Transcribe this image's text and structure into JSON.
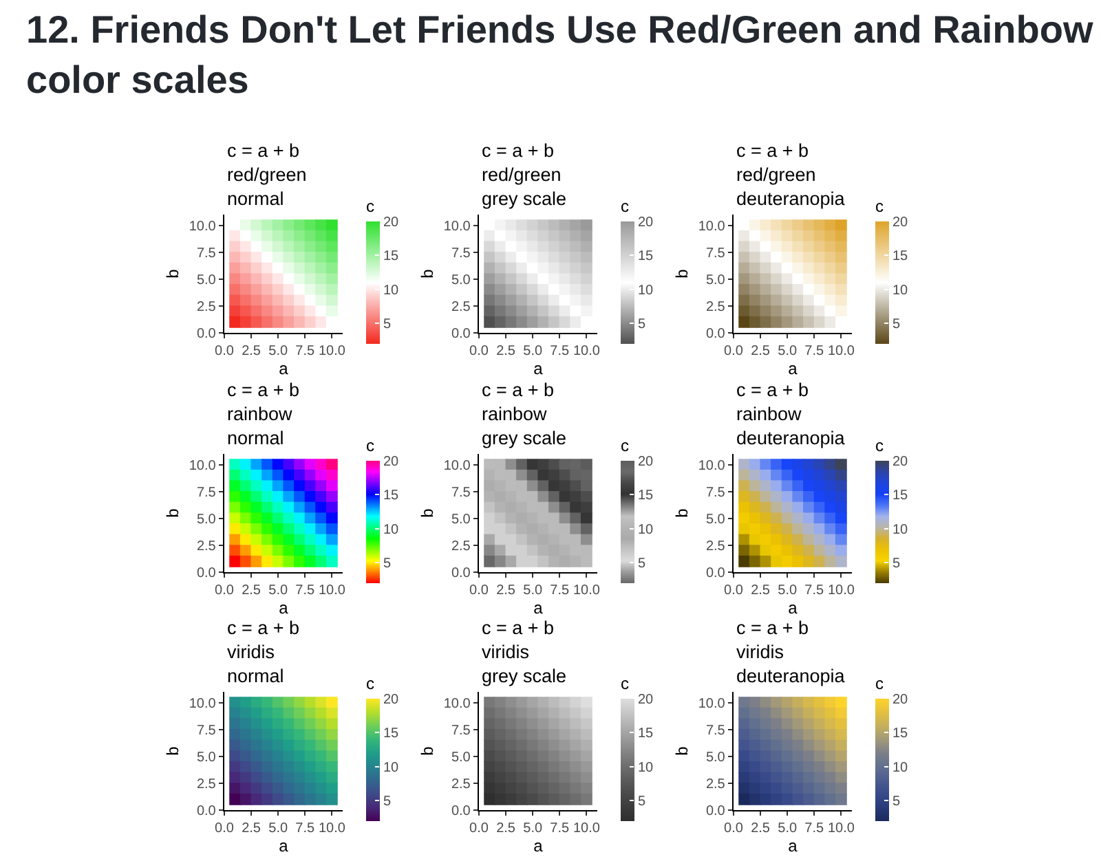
{
  "chart_data": [
    {
      "type": "heatmap",
      "title": "c = a + b\nred/green\nnormal",
      "xlabel": "a",
      "ylabel": "b",
      "clabel": "c",
      "x": [
        1,
        2,
        3,
        4,
        5,
        6,
        7,
        8,
        9,
        10
      ],
      "y": [
        10,
        9,
        8,
        7,
        6,
        5,
        4,
        3,
        2,
        1
      ],
      "cells": [
        [
          11,
          12,
          13,
          14,
          15,
          16,
          17,
          18,
          19,
          20
        ],
        [
          10,
          11,
          12,
          13,
          14,
          15,
          16,
          17,
          18,
          19
        ],
        [
          9,
          10,
          11,
          12,
          13,
          14,
          15,
          16,
          17,
          18
        ],
        [
          8,
          9,
          10,
          11,
          12,
          13,
          14,
          15,
          16,
          17
        ],
        [
          7,
          8,
          9,
          10,
          11,
          12,
          13,
          14,
          15,
          16
        ],
        [
          6,
          7,
          8,
          9,
          10,
          11,
          12,
          13,
          14,
          15
        ],
        [
          5,
          6,
          7,
          8,
          9,
          10,
          11,
          12,
          13,
          14
        ],
        [
          4,
          5,
          6,
          7,
          8,
          9,
          10,
          11,
          12,
          13
        ],
        [
          3,
          4,
          5,
          6,
          7,
          8,
          9,
          10,
          11,
          12
        ],
        [
          2,
          3,
          4,
          5,
          6,
          7,
          8,
          9,
          10,
          11
        ]
      ],
      "colors": [
        "#f3281e",
        "#ffffff",
        "#2fe02f"
      ],
      "clim": [
        2,
        20
      ],
      "cticks": [
        5,
        10,
        15,
        20
      ],
      "xlim": [
        0,
        11
      ],
      "ylim": [
        0,
        11
      ],
      "xticks": [
        {
          "value": 0,
          "label": "0.0"
        },
        {
          "value": 2.5,
          "label": "2.5"
        },
        {
          "value": 5,
          "label": "5.0"
        },
        {
          "value": 7.5,
          "label": "7.5"
        },
        {
          "value": 10,
          "label": "10.0"
        }
      ],
      "yticks": [
        {
          "value": 0,
          "label": "0.0"
        },
        {
          "value": 2.5,
          "label": "2.5"
        },
        {
          "value": 5,
          "label": "5.0"
        },
        {
          "value": 7.5,
          "label": "7.5"
        },
        {
          "value": 10,
          "label": "10.0"
        }
      ]
    },
    {
      "type": "heatmap",
      "title": "c = a + b\nred/green\ngrey scale",
      "xlabel": "a",
      "ylabel": "b",
      "clabel": "c",
      "x": [
        1,
        2,
        3,
        4,
        5,
        6,
        7,
        8,
        9,
        10
      ],
      "y": [
        10,
        9,
        8,
        7,
        6,
        5,
        4,
        3,
        2,
        1
      ],
      "cells": [
        [
          11,
          12,
          13,
          14,
          15,
          16,
          17,
          18,
          19,
          20
        ],
        [
          10,
          11,
          12,
          13,
          14,
          15,
          16,
          17,
          18,
          19
        ],
        [
          9,
          10,
          11,
          12,
          13,
          14,
          15,
          16,
          17,
          18
        ],
        [
          8,
          9,
          10,
          11,
          12,
          13,
          14,
          15,
          16,
          17
        ],
        [
          7,
          8,
          9,
          10,
          11,
          12,
          13,
          14,
          15,
          16
        ],
        [
          6,
          7,
          8,
          9,
          10,
          11,
          12,
          13,
          14,
          15
        ],
        [
          5,
          6,
          7,
          8,
          9,
          10,
          11,
          12,
          13,
          14
        ],
        [
          4,
          5,
          6,
          7,
          8,
          9,
          10,
          11,
          12,
          13
        ],
        [
          3,
          4,
          5,
          6,
          7,
          8,
          9,
          10,
          11,
          12
        ],
        [
          2,
          3,
          4,
          5,
          6,
          7,
          8,
          9,
          10,
          11
        ]
      ],
      "colors": [
        "#505050",
        "#ffffff",
        "#9a9a9a"
      ],
      "clim": [
        2,
        20
      ],
      "cticks": [
        5,
        10,
        15,
        20
      ],
      "xlim": [
        0,
        11
      ],
      "ylim": [
        0,
        11
      ],
      "xticks": [
        {
          "value": 0,
          "label": "0.0"
        },
        {
          "value": 2.5,
          "label": "2.5"
        },
        {
          "value": 5,
          "label": "5.0"
        },
        {
          "value": 7.5,
          "label": "7.5"
        },
        {
          "value": 10,
          "label": "10.0"
        }
      ],
      "yticks": [
        {
          "value": 0,
          "label": "0.0"
        },
        {
          "value": 2.5,
          "label": "2.5"
        },
        {
          "value": 5,
          "label": "5.0"
        },
        {
          "value": 7.5,
          "label": "7.5"
        },
        {
          "value": 10,
          "label": "10.0"
        }
      ]
    },
    {
      "type": "heatmap",
      "title": "c = a + b\nred/green\ndeuteranopia",
      "xlabel": "a",
      "ylabel": "b",
      "clabel": "c",
      "x": [
        1,
        2,
        3,
        4,
        5,
        6,
        7,
        8,
        9,
        10
      ],
      "y": [
        10,
        9,
        8,
        7,
        6,
        5,
        4,
        3,
        2,
        1
      ],
      "cells": [
        [
          11,
          12,
          13,
          14,
          15,
          16,
          17,
          18,
          19,
          20
        ],
        [
          10,
          11,
          12,
          13,
          14,
          15,
          16,
          17,
          18,
          19
        ],
        [
          9,
          10,
          11,
          12,
          13,
          14,
          15,
          16,
          17,
          18
        ],
        [
          8,
          9,
          10,
          11,
          12,
          13,
          14,
          15,
          16,
          17
        ],
        [
          7,
          8,
          9,
          10,
          11,
          12,
          13,
          14,
          15,
          16
        ],
        [
          6,
          7,
          8,
          9,
          10,
          11,
          12,
          13,
          14,
          15
        ],
        [
          5,
          6,
          7,
          8,
          9,
          10,
          11,
          12,
          13,
          14
        ],
        [
          4,
          5,
          6,
          7,
          8,
          9,
          10,
          11,
          12,
          13
        ],
        [
          3,
          4,
          5,
          6,
          7,
          8,
          9,
          10,
          11,
          12
        ],
        [
          2,
          3,
          4,
          5,
          6,
          7,
          8,
          9,
          10,
          11
        ]
      ],
      "colors": [
        "#5a4516",
        "#ffffff",
        "#dea42a"
      ],
      "clim": [
        2,
        20
      ],
      "cticks": [
        5,
        10,
        15,
        20
      ],
      "xlim": [
        0,
        11
      ],
      "ylim": [
        0,
        11
      ],
      "xticks": [
        {
          "value": 0,
          "label": "0.0"
        },
        {
          "value": 2.5,
          "label": "2.5"
        },
        {
          "value": 5,
          "label": "5.0"
        },
        {
          "value": 7.5,
          "label": "7.5"
        },
        {
          "value": 10,
          "label": "10.0"
        }
      ],
      "yticks": [
        {
          "value": 0,
          "label": "0.0"
        },
        {
          "value": 2.5,
          "label": "2.5"
        },
        {
          "value": 5,
          "label": "5.0"
        },
        {
          "value": 7.5,
          "label": "7.5"
        },
        {
          "value": 10,
          "label": "10.0"
        }
      ]
    },
    {
      "type": "heatmap",
      "title": "c = a + b\nrainbow\nnormal",
      "xlabel": "a",
      "ylabel": "b",
      "clabel": "c",
      "x": [
        1,
        2,
        3,
        4,
        5,
        6,
        7,
        8,
        9,
        10
      ],
      "y": [
        10,
        9,
        8,
        7,
        6,
        5,
        4,
        3,
        2,
        1
      ],
      "cells": [
        [
          11,
          12,
          13,
          14,
          15,
          16,
          17,
          18,
          19,
          20
        ],
        [
          10,
          11,
          12,
          13,
          14,
          15,
          16,
          17,
          18,
          19
        ],
        [
          9,
          10,
          11,
          12,
          13,
          14,
          15,
          16,
          17,
          18
        ],
        [
          8,
          9,
          10,
          11,
          12,
          13,
          14,
          15,
          16,
          17
        ],
        [
          7,
          8,
          9,
          10,
          11,
          12,
          13,
          14,
          15,
          16
        ],
        [
          6,
          7,
          8,
          9,
          10,
          11,
          12,
          13,
          14,
          15
        ],
        [
          5,
          6,
          7,
          8,
          9,
          10,
          11,
          12,
          13,
          14
        ],
        [
          4,
          5,
          6,
          7,
          8,
          9,
          10,
          11,
          12,
          13
        ],
        [
          3,
          4,
          5,
          6,
          7,
          8,
          9,
          10,
          11,
          12
        ],
        [
          2,
          3,
          4,
          5,
          6,
          7,
          8,
          9,
          10,
          11
        ]
      ],
      "colors": [
        "#ff0000",
        "#ff8000",
        "#ffff00",
        "#80ff00",
        "#00ff00",
        "#00ff80",
        "#00ffff",
        "#0080ff",
        "#0000ff",
        "#8000ff",
        "#ff00ff",
        "#ff0080"
      ],
      "clim": [
        2,
        20
      ],
      "cticks": [
        5,
        10,
        15,
        20
      ],
      "xlim": [
        0,
        11
      ],
      "ylim": [
        0,
        11
      ],
      "xticks": [
        {
          "value": 0,
          "label": "0.0"
        },
        {
          "value": 2.5,
          "label": "2.5"
        },
        {
          "value": 5,
          "label": "5.0"
        },
        {
          "value": 7.5,
          "label": "7.5"
        },
        {
          "value": 10,
          "label": "10.0"
        }
      ],
      "yticks": [
        {
          "value": 0,
          "label": "0.0"
        },
        {
          "value": 2.5,
          "label": "2.5"
        },
        {
          "value": 5,
          "label": "5.0"
        },
        {
          "value": 7.5,
          "label": "7.5"
        },
        {
          "value": 10,
          "label": "10.0"
        }
      ]
    },
    {
      "type": "heatmap",
      "title": "c = a + b\nrainbow\ngrey scale",
      "xlabel": "a",
      "ylabel": "b",
      "clabel": "c",
      "x": [
        1,
        2,
        3,
        4,
        5,
        6,
        7,
        8,
        9,
        10
      ],
      "y": [
        10,
        9,
        8,
        7,
        6,
        5,
        4,
        3,
        2,
        1
      ],
      "cells": [
        [
          11,
          12,
          13,
          14,
          15,
          16,
          17,
          18,
          19,
          20
        ],
        [
          10,
          11,
          12,
          13,
          14,
          15,
          16,
          17,
          18,
          19
        ],
        [
          9,
          10,
          11,
          12,
          13,
          14,
          15,
          16,
          17,
          18
        ],
        [
          8,
          9,
          10,
          11,
          12,
          13,
          14,
          15,
          16,
          17
        ],
        [
          7,
          8,
          9,
          10,
          11,
          12,
          13,
          14,
          15,
          16
        ],
        [
          6,
          7,
          8,
          9,
          10,
          11,
          12,
          13,
          14,
          15
        ],
        [
          5,
          6,
          7,
          8,
          9,
          10,
          11,
          12,
          13,
          14
        ],
        [
          4,
          5,
          6,
          7,
          8,
          9,
          10,
          11,
          12,
          13
        ],
        [
          3,
          4,
          5,
          6,
          7,
          8,
          9,
          10,
          11,
          12
        ],
        [
          2,
          3,
          4,
          5,
          6,
          7,
          8,
          9,
          10,
          11
        ]
      ],
      "colors": [
        "#686868",
        "#9b9b9b",
        "#dcdcdc",
        "#c4c4c4",
        "#aaaaaa",
        "#b4b4b4",
        "#c2c2c2",
        "#7a7a7a",
        "#323232",
        "#474747",
        "#6a6a6a",
        "#5c5c5c"
      ],
      "clim": [
        2,
        20
      ],
      "cticks": [
        5,
        10,
        15,
        20
      ],
      "xlim": [
        0,
        11
      ],
      "ylim": [
        0,
        11
      ],
      "xticks": [
        {
          "value": 0,
          "label": "0.0"
        },
        {
          "value": 2.5,
          "label": "2.5"
        },
        {
          "value": 5,
          "label": "5.0"
        },
        {
          "value": 7.5,
          "label": "7.5"
        },
        {
          "value": 10,
          "label": "10.0"
        }
      ],
      "yticks": [
        {
          "value": 0,
          "label": "0.0"
        },
        {
          "value": 2.5,
          "label": "2.5"
        },
        {
          "value": 5,
          "label": "5.0"
        },
        {
          "value": 7.5,
          "label": "7.5"
        },
        {
          "value": 10,
          "label": "10.0"
        }
      ]
    },
    {
      "type": "heatmap",
      "title": "c = a + b\nrainbow\ndeuteranopia",
      "xlabel": "a",
      "ylabel": "b",
      "clabel": "c",
      "x": [
        1,
        2,
        3,
        4,
        5,
        6,
        7,
        8,
        9,
        10
      ],
      "y": [
        10,
        9,
        8,
        7,
        6,
        5,
        4,
        3,
        2,
        1
      ],
      "cells": [
        [
          11,
          12,
          13,
          14,
          15,
          16,
          17,
          18,
          19,
          20
        ],
        [
          10,
          11,
          12,
          13,
          14,
          15,
          16,
          17,
          18,
          19
        ],
        [
          9,
          10,
          11,
          12,
          13,
          14,
          15,
          16,
          17,
          18
        ],
        [
          8,
          9,
          10,
          11,
          12,
          13,
          14,
          15,
          16,
          17
        ],
        [
          7,
          8,
          9,
          10,
          11,
          12,
          13,
          14,
          15,
          16
        ],
        [
          6,
          7,
          8,
          9,
          10,
          11,
          12,
          13,
          14,
          15
        ],
        [
          5,
          6,
          7,
          8,
          9,
          10,
          11,
          12,
          13,
          14
        ],
        [
          4,
          5,
          6,
          7,
          8,
          9,
          10,
          11,
          12,
          13
        ],
        [
          3,
          4,
          5,
          6,
          7,
          8,
          9,
          10,
          11,
          12
        ],
        [
          2,
          3,
          4,
          5,
          6,
          7,
          8,
          9,
          10,
          11
        ]
      ],
      "colors": [
        "#4a3b00",
        "#9a7f00",
        "#f8d400",
        "#ecc200",
        "#d6b12e",
        "#b9b6a8",
        "#a3b3ec",
        "#4a74f6",
        "#1442f7",
        "#1f44dc",
        "#2c44a8",
        "#3d4458"
      ],
      "clim": [
        2,
        20
      ],
      "cticks": [
        5,
        10,
        15,
        20
      ],
      "xlim": [
        0,
        11
      ],
      "ylim": [
        0,
        11
      ],
      "xticks": [
        {
          "value": 0,
          "label": "0.0"
        },
        {
          "value": 2.5,
          "label": "2.5"
        },
        {
          "value": 5,
          "label": "5.0"
        },
        {
          "value": 7.5,
          "label": "7.5"
        },
        {
          "value": 10,
          "label": "10.0"
        }
      ],
      "yticks": [
        {
          "value": 0,
          "label": "0.0"
        },
        {
          "value": 2.5,
          "label": "2.5"
        },
        {
          "value": 5,
          "label": "5.0"
        },
        {
          "value": 7.5,
          "label": "7.5"
        },
        {
          "value": 10,
          "label": "10.0"
        }
      ]
    },
    {
      "type": "heatmap",
      "title": "c = a + b\nviridis\nnormal",
      "xlabel": "a",
      "ylabel": "b",
      "clabel": "c",
      "x": [
        1,
        2,
        3,
        4,
        5,
        6,
        7,
        8,
        9,
        10
      ],
      "y": [
        10,
        9,
        8,
        7,
        6,
        5,
        4,
        3,
        2,
        1
      ],
      "cells": [
        [
          11,
          12,
          13,
          14,
          15,
          16,
          17,
          18,
          19,
          20
        ],
        [
          10,
          11,
          12,
          13,
          14,
          15,
          16,
          17,
          18,
          19
        ],
        [
          9,
          10,
          11,
          12,
          13,
          14,
          15,
          16,
          17,
          18
        ],
        [
          8,
          9,
          10,
          11,
          12,
          13,
          14,
          15,
          16,
          17
        ],
        [
          7,
          8,
          9,
          10,
          11,
          12,
          13,
          14,
          15,
          16
        ],
        [
          6,
          7,
          8,
          9,
          10,
          11,
          12,
          13,
          14,
          15
        ],
        [
          5,
          6,
          7,
          8,
          9,
          10,
          11,
          12,
          13,
          14
        ],
        [
          4,
          5,
          6,
          7,
          8,
          9,
          10,
          11,
          12,
          13
        ],
        [
          3,
          4,
          5,
          6,
          7,
          8,
          9,
          10,
          11,
          12
        ],
        [
          2,
          3,
          4,
          5,
          6,
          7,
          8,
          9,
          10,
          11
        ]
      ],
      "colors": [
        "#440154",
        "#482878",
        "#3e4a89",
        "#31688e",
        "#26828e",
        "#1f9e89",
        "#35b779",
        "#6ece58",
        "#b5de2b",
        "#fde725"
      ],
      "clim": [
        2,
        20
      ],
      "cticks": [
        5,
        10,
        15,
        20
      ],
      "xlim": [
        0,
        11
      ],
      "ylim": [
        0,
        11
      ],
      "xticks": [
        {
          "value": 0,
          "label": "0.0"
        },
        {
          "value": 2.5,
          "label": "2.5"
        },
        {
          "value": 5,
          "label": "5.0"
        },
        {
          "value": 7.5,
          "label": "7.5"
        },
        {
          "value": 10,
          "label": "10.0"
        }
      ],
      "yticks": [
        {
          "value": 0,
          "label": "0.0"
        },
        {
          "value": 2.5,
          "label": "2.5"
        },
        {
          "value": 5,
          "label": "5.0"
        },
        {
          "value": 7.5,
          "label": "7.5"
        },
        {
          "value": 10,
          "label": "10.0"
        }
      ]
    },
    {
      "type": "heatmap",
      "title": "c = a + b\nviridis\ngrey scale",
      "xlabel": "a",
      "ylabel": "b",
      "clabel": "c",
      "x": [
        1,
        2,
        3,
        4,
        5,
        6,
        7,
        8,
        9,
        10
      ],
      "y": [
        10,
        9,
        8,
        7,
        6,
        5,
        4,
        3,
        2,
        1
      ],
      "cells": [
        [
          11,
          12,
          13,
          14,
          15,
          16,
          17,
          18,
          19,
          20
        ],
        [
          10,
          11,
          12,
          13,
          14,
          15,
          16,
          17,
          18,
          19
        ],
        [
          9,
          10,
          11,
          12,
          13,
          14,
          15,
          16,
          17,
          18
        ],
        [
          8,
          9,
          10,
          11,
          12,
          13,
          14,
          15,
          16,
          17
        ],
        [
          7,
          8,
          9,
          10,
          11,
          12,
          13,
          14,
          15,
          16
        ],
        [
          6,
          7,
          8,
          9,
          10,
          11,
          12,
          13,
          14,
          15
        ],
        [
          5,
          6,
          7,
          8,
          9,
          10,
          11,
          12,
          13,
          14
        ],
        [
          4,
          5,
          6,
          7,
          8,
          9,
          10,
          11,
          12,
          13
        ],
        [
          3,
          4,
          5,
          6,
          7,
          8,
          9,
          10,
          11,
          12
        ],
        [
          2,
          3,
          4,
          5,
          6,
          7,
          8,
          9,
          10,
          11
        ]
      ],
      "colors": [
        "#2e2e2e",
        "#3b3b3b",
        "#4a4a4a",
        "#5b5b5b",
        "#6d6d6d",
        "#828282",
        "#999999",
        "#b0b0b0",
        "#c7c7c7",
        "#dedede"
      ],
      "clim": [
        2,
        20
      ],
      "cticks": [
        5,
        10,
        15,
        20
      ],
      "xlim": [
        0,
        11
      ],
      "ylim": [
        0,
        11
      ],
      "xticks": [
        {
          "value": 0,
          "label": "0.0"
        },
        {
          "value": 2.5,
          "label": "2.5"
        },
        {
          "value": 5,
          "label": "5.0"
        },
        {
          "value": 7.5,
          "label": "7.5"
        },
        {
          "value": 10,
          "label": "10.0"
        }
      ],
      "yticks": [
        {
          "value": 0,
          "label": "0.0"
        },
        {
          "value": 2.5,
          "label": "2.5"
        },
        {
          "value": 5,
          "label": "5.0"
        },
        {
          "value": 7.5,
          "label": "7.5"
        },
        {
          "value": 10,
          "label": "10.0"
        }
      ]
    },
    {
      "type": "heatmap",
      "title": "c = a + b\nviridis\ndeuteranopia",
      "xlabel": "a",
      "ylabel": "b",
      "clabel": "c",
      "x": [
        1,
        2,
        3,
        4,
        5,
        6,
        7,
        8,
        9,
        10
      ],
      "y": [
        10,
        9,
        8,
        7,
        6,
        5,
        4,
        3,
        2,
        1
      ],
      "cells": [
        [
          11,
          12,
          13,
          14,
          15,
          16,
          17,
          18,
          19,
          20
        ],
        [
          10,
          11,
          12,
          13,
          14,
          15,
          16,
          17,
          18,
          19
        ],
        [
          9,
          10,
          11,
          12,
          13,
          14,
          15,
          16,
          17,
          18
        ],
        [
          8,
          9,
          10,
          11,
          12,
          13,
          14,
          15,
          16,
          17
        ],
        [
          7,
          8,
          9,
          10,
          11,
          12,
          13,
          14,
          15,
          16
        ],
        [
          6,
          7,
          8,
          9,
          10,
          11,
          12,
          13,
          14,
          15
        ],
        [
          5,
          6,
          7,
          8,
          9,
          10,
          11,
          12,
          13,
          14
        ],
        [
          4,
          5,
          6,
          7,
          8,
          9,
          10,
          11,
          12,
          13
        ],
        [
          3,
          4,
          5,
          6,
          7,
          8,
          9,
          10,
          11,
          12
        ],
        [
          2,
          3,
          4,
          5,
          6,
          7,
          8,
          9,
          10,
          11
        ]
      ],
      "colors": [
        "#1b2a5c",
        "#293a79",
        "#384a8a",
        "#4c5c8f",
        "#61708f",
        "#7c7f88",
        "#a2987a",
        "#c6af5c",
        "#e4c03f",
        "#fdd42c"
      ],
      "clim": [
        2,
        20
      ],
      "cticks": [
        5,
        10,
        15,
        20
      ],
      "xlim": [
        0,
        11
      ],
      "ylim": [
        0,
        11
      ],
      "xticks": [
        {
          "value": 0,
          "label": "0.0"
        },
        {
          "value": 2.5,
          "label": "2.5"
        },
        {
          "value": 5,
          "label": "5.0"
        },
        {
          "value": 7.5,
          "label": "7.5"
        },
        {
          "value": 10,
          "label": "10.0"
        }
      ],
      "yticks": [
        {
          "value": 0,
          "label": "0.0"
        },
        {
          "value": 2.5,
          "label": "2.5"
        },
        {
          "value": 5,
          "label": "5.0"
        },
        {
          "value": 7.5,
          "label": "7.5"
        },
        {
          "value": 10,
          "label": "10.0"
        }
      ]
    },
    {
      "type": "other",
      "title": "12. Friends Don't Let Friends Use Red/Green and Rainbow color scales"
    }
  ]
}
